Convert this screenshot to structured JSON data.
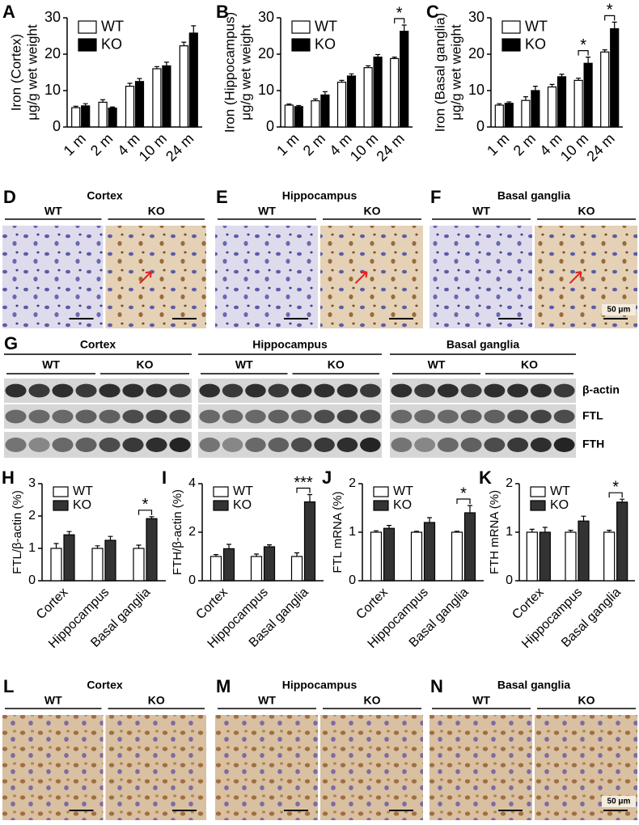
{
  "chart_data": [
    {
      "type": "bar",
      "letter": "A",
      "ylabel": [
        "Iron (Cortex)",
        "μg/g wet weight"
      ],
      "categories": [
        "1 m",
        "2 m",
        "4 m",
        "10 m",
        "24 m"
      ],
      "series": [
        {
          "name": "WT",
          "color": "#ffffff",
          "values": [
            5.3,
            6.8,
            11.2,
            16,
            22.3
          ],
          "errors": [
            0.4,
            0.7,
            0.8,
            0.6,
            1.0
          ]
        },
        {
          "name": "KO",
          "color": "#000000",
          "values": [
            5.8,
            5.2,
            12.5,
            16.8,
            25.8
          ],
          "errors": [
            0.6,
            0.3,
            0.8,
            1.0,
            2.0
          ]
        }
      ],
      "ylim": [
        0,
        30
      ],
      "yticks": [
        0,
        10,
        20,
        30
      ],
      "annotations": []
    },
    {
      "type": "bar",
      "letter": "B",
      "ylabel": [
        "Iron (Hippocampus)",
        "μg/g wet weight"
      ],
      "categories": [
        "1 m",
        "2 m",
        "4 m",
        "10 m",
        "24 m"
      ],
      "series": [
        {
          "name": "WT",
          "color": "#ffffff",
          "values": [
            6,
            7.2,
            12.3,
            16.3,
            18.8
          ],
          "errors": [
            0.3,
            0.5,
            0.5,
            0.5,
            0.4
          ]
        },
        {
          "name": "KO",
          "color": "#000000",
          "values": [
            5.6,
            8.8,
            14,
            19.2,
            26.3
          ],
          "errors": [
            0.3,
            0.9,
            0.6,
            0.7,
            1.7
          ]
        }
      ],
      "ylim": [
        0,
        30
      ],
      "yticks": [
        0,
        10,
        20,
        30
      ],
      "annotations": [
        {
          "category": "24 m",
          "label": "*"
        }
      ]
    },
    {
      "type": "bar",
      "letter": "C",
      "ylabel": [
        "Iron (Basal ganglia)",
        "μg/g wet weight"
      ],
      "categories": [
        "1 m",
        "2 m",
        "4 m",
        "10 m",
        "24 m"
      ],
      "series": [
        {
          "name": "WT",
          "color": "#ffffff",
          "values": [
            6,
            7.3,
            11,
            12.8,
            20.6
          ],
          "errors": [
            0.4,
            1.0,
            0.7,
            0.6,
            0.6
          ]
        },
        {
          "name": "KO",
          "color": "#000000",
          "values": [
            6.5,
            10,
            13.8,
            17.5,
            27
          ],
          "errors": [
            0.4,
            1.2,
            0.7,
            1.7,
            1.8
          ]
        }
      ],
      "ylim": [
        0,
        30
      ],
      "yticks": [
        0,
        10,
        20,
        30
      ],
      "annotations": [
        {
          "category": "10 m",
          "label": "*"
        },
        {
          "category": "24 m",
          "label": "*"
        }
      ]
    },
    {
      "type": "bar",
      "letter": "H",
      "ylabel": [
        "FTL/β-actin (%)"
      ],
      "categories": [
        "Cortex",
        "Hippocampus",
        "Basal ganglia"
      ],
      "series": [
        {
          "name": "WT",
          "color": "#ffffff",
          "values": [
            1,
            1,
            1
          ],
          "errors": [
            0.15,
            0.08,
            0.1
          ]
        },
        {
          "name": "KO",
          "color": "#333333",
          "values": [
            1.42,
            1.25,
            1.92
          ],
          "errors": [
            0.1,
            0.12,
            0.06
          ]
        }
      ],
      "ylim": [
        0,
        3
      ],
      "yticks": [
        0,
        1,
        2,
        3
      ],
      "annotations": [
        {
          "category": "Basal ganglia",
          "label": "*"
        }
      ]
    },
    {
      "type": "bar",
      "letter": "I",
      "ylabel": [
        "FTH/β-actin (%)"
      ],
      "categories": [
        "Cortex",
        "Hippocampus",
        "Basal ganglia"
      ],
      "series": [
        {
          "name": "WT",
          "color": "#ffffff",
          "values": [
            1,
            1,
            1
          ],
          "errors": [
            0.08,
            0.1,
            0.15
          ]
        },
        {
          "name": "KO",
          "color": "#333333",
          "values": [
            1.32,
            1.4,
            3.25
          ],
          "errors": [
            0.18,
            0.08,
            0.3
          ]
        }
      ],
      "ylim": [
        0,
        4
      ],
      "yticks": [
        0,
        2,
        4
      ],
      "annotations": [
        {
          "category": "Basal ganglia",
          "label": "***"
        }
      ]
    },
    {
      "type": "bar",
      "letter": "J",
      "ylabel": [
        "FTL mRNA (%)"
      ],
      "categories": [
        "Cortex",
        "Hippocampus",
        "Basal ganglia"
      ],
      "series": [
        {
          "name": "WT",
          "color": "#ffffff",
          "values": [
            1,
            1,
            1
          ],
          "errors": [
            0.03,
            0.02,
            0.02
          ]
        },
        {
          "name": "KO",
          "color": "#333333",
          "values": [
            1.08,
            1.2,
            1.4
          ],
          "errors": [
            0.06,
            0.1,
            0.15
          ]
        }
      ],
      "ylim": [
        0,
        2
      ],
      "yticks": [
        0,
        1,
        2
      ],
      "annotations": [
        {
          "category": "Basal ganglia",
          "label": "*"
        }
      ]
    },
    {
      "type": "bar",
      "letter": "K",
      "ylabel": [
        "FTH mRNA (%)"
      ],
      "categories": [
        "Cortex",
        "Hippocampus",
        "Basal ganglia"
      ],
      "series": [
        {
          "name": "WT",
          "color": "#ffffff",
          "values": [
            1,
            1,
            1
          ],
          "errors": [
            0.06,
            0.04,
            0.04
          ]
        },
        {
          "name": "KO",
          "color": "#333333",
          "values": [
            1,
            1.23,
            1.62
          ],
          "errors": [
            0.1,
            0.1,
            0.06
          ]
        }
      ],
      "ylim": [
        0,
        2
      ],
      "yticks": [
        0,
        1,
        2
      ],
      "annotations": [
        {
          "category": "Basal ganglia",
          "label": "*"
        }
      ]
    }
  ],
  "image_rows": [
    [
      {
        "letter": "D",
        "region": "Cortex",
        "groups": [
          "WT",
          "KO"
        ]
      },
      {
        "letter": "E",
        "region": "Hippocampus",
        "groups": [
          "WT",
          "KO"
        ]
      },
      {
        "letter": "F",
        "region": "Basal ganglia",
        "groups": [
          "WT",
          "KO"
        ],
        "scale": "50 μm"
      }
    ],
    [
      {
        "letter": "L",
        "region": "Cortex",
        "groups": [
          "WT",
          "KO"
        ]
      },
      {
        "letter": "M",
        "region": "Hippocampus",
        "groups": [
          "WT",
          "KO"
        ]
      },
      {
        "letter": "N",
        "region": "Basal ganglia",
        "groups": [
          "WT",
          "KO"
        ],
        "scale": "50 μm"
      }
    ]
  ],
  "blot": {
    "letter": "G",
    "regions": [
      "Cortex",
      "Hippocampus",
      "Basal ganglia"
    ],
    "groups": [
      "WT",
      "KO"
    ],
    "bands": [
      "β-actin",
      "FTL",
      "FTH"
    ]
  }
}
